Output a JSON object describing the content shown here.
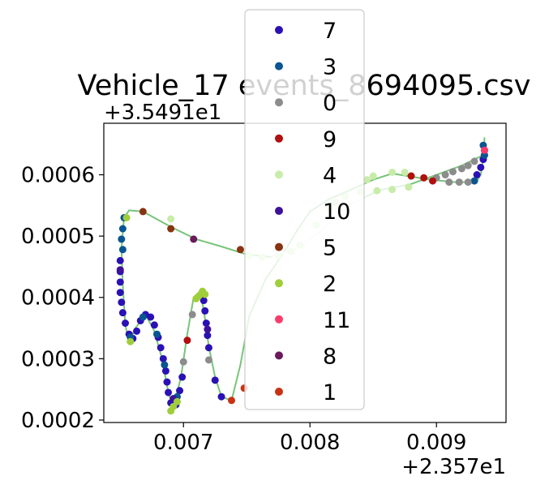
{
  "chart_data": {
    "type": "scatter",
    "title": "Vehicle_17 events_8694095.csv",
    "xlabel": "",
    "ylabel": "",
    "x_offset_label": "+2.357e1",
    "y_offset_label": "+3.5491e1",
    "x_offset": 23.57,
    "y_offset": 35.491,
    "xlim": [
      0.00637,
      0.00955
    ],
    "ylim": [
      0.000196,
      0.000684
    ],
    "x_ticks": [
      0.007,
      0.008,
      0.009
    ],
    "x_tick_labels": [
      "0.007",
      "0.008",
      "0.009"
    ],
    "y_ticks": [
      0.0002,
      0.0003,
      0.0004,
      0.0005,
      0.0006
    ],
    "y_tick_labels": [
      "0.0002",
      "0.0003",
      "0.0004",
      "0.0005",
      "0.0006"
    ],
    "grid": false,
    "legend_position": "upper center",
    "trajectory_line": {
      "colors": [
        "#72c173",
        "#f0f9f0"
      ]
    },
    "trajectory": [
      [
        0.00938,
        0.00066
      ],
      [
        0.00937,
        0.000625
      ],
      [
        0.00935,
        0.0006
      ],
      [
        0.00932,
        0.00059
      ],
      [
        0.00926,
        0.000588
      ],
      [
        0.00915,
        0.000588
      ],
      [
        0.00905,
        0.00059
      ],
      [
        0.00895,
        0.000592
      ],
      [
        0.0088,
        0.000597
      ],
      [
        0.00865,
        0.000602
      ],
      [
        0.0085,
        0.000592
      ],
      [
        0.00835,
        0.000578
      ],
      [
        0.00815,
        0.00056
      ],
      [
        0.008,
        0.00054
      ],
      [
        0.0079,
        0.00051
      ],
      [
        0.0078,
        0.000475
      ],
      [
        0.00765,
        0.00043
      ],
      [
        0.00752,
        0.00037
      ],
      [
        0.00745,
        0.00029
      ],
      [
        0.00738,
        0.000232
      ],
      [
        0.0073,
        0.000238
      ],
      [
        0.00725,
        0.00027
      ],
      [
        0.0072,
        0.00032
      ],
      [
        0.00716,
        0.00038
      ],
      [
        0.00713,
        0.00041
      ],
      [
        0.00708,
        0.0004
      ],
      [
        0.00703,
        0.00034
      ],
      [
        0.00698,
        0.00027
      ],
      [
        0.00692,
        0.00022
      ],
      [
        0.00688,
        0.000245
      ],
      [
        0.00683,
        0.0003
      ],
      [
        0.00677,
        0.000345
      ],
      [
        0.0067,
        0.000372
      ],
      [
        0.00662,
        0.00035
      ],
      [
        0.00657,
        0.000326
      ],
      [
        0.00654,
        0.000355
      ],
      [
        0.00652,
        0.00042
      ],
      [
        0.00651,
        0.00048
      ],
      [
        0.00653,
        0.00053
      ],
      [
        0.00657,
        0.000542
      ],
      [
        0.00668,
        0.00054
      ],
      [
        0.0069,
        0.000515
      ],
      [
        0.0071,
        0.000495
      ],
      [
        0.0073,
        0.000483
      ],
      [
        0.0075,
        0.00047
      ],
      [
        0.0077,
        0.000466
      ],
      [
        0.0079,
        0.00048
      ],
      [
        0.0081,
        0.00051
      ],
      [
        0.0083,
        0.00055
      ],
      [
        0.00855,
        0.000575
      ],
      [
        0.0088,
        0.000585
      ],
      [
        0.009,
        0.0006
      ],
      [
        0.0092,
        0.000615
      ],
      [
        0.00935,
        0.00063
      ],
      [
        0.00938,
        0.000645
      ]
    ],
    "series": [
      {
        "name": "7",
        "color": "#2a11b5",
        "points": [
          [
            0.00932,
            0.0006
          ],
          [
            0.00935,
            0.000612
          ],
          [
            0.00937,
            0.000625
          ],
          [
            0.00938,
            0.00064
          ],
          [
            0.0065,
            0.00046
          ],
          [
            0.0065,
            0.000442
          ],
          [
            0.0065,
            0.000425
          ],
          [
            0.0065,
            0.000408
          ],
          [
            0.00651,
            0.000392
          ],
          [
            0.00652,
            0.000375
          ],
          [
            0.00654,
            0.000358
          ],
          [
            0.00657,
            0.00034
          ],
          [
            0.0066,
            0.000333
          ],
          [
            0.00663,
            0.000345
          ],
          [
            0.00666,
            0.000362
          ],
          [
            0.0067,
            0.000372
          ],
          [
            0.00674,
            0.000368
          ],
          [
            0.00677,
            0.000355
          ],
          [
            0.0068,
            0.000335
          ],
          [
            0.00682,
            0.000318
          ],
          [
            0.00684,
            0.0003
          ],
          [
            0.00686,
            0.00028
          ],
          [
            0.00687,
            0.000262
          ],
          [
            0.00688,
            0.000245
          ],
          [
            0.0069,
            0.000228
          ],
          [
            0.00694,
            0.000225
          ],
          [
            0.00697,
            0.000248
          ],
          [
            0.00699,
            0.00027
          ],
          [
            0.00716,
            0.000395
          ],
          [
            0.00717,
            0.000378
          ],
          [
            0.00718,
            0.000358
          ],
          [
            0.00719,
            0.000338
          ],
          [
            0.0072,
            0.000318
          ],
          [
            0.00725,
            0.000265
          ],
          [
            0.0073,
            0.000238
          ]
        ]
      },
      {
        "name": "3",
        "color": "#0a5591",
        "points": [
          [
            0.00937,
            0.000648
          ],
          [
            0.00938,
            0.000632
          ],
          [
            0.00651,
            0.000495
          ],
          [
            0.00652,
            0.000512
          ],
          [
            0.00653,
            0.00053
          ],
          [
            0.00658,
            0.000335
          ],
          [
            0.00668,
            0.000368
          ],
          [
            0.00679,
            0.00034
          ],
          [
            0.00685,
            0.00029
          ],
          [
            0.00695,
            0.000238
          ],
          [
            0.0093,
            0.00059
          ],
          [
            0.00652,
            0.000478
          ]
        ]
      },
      {
        "name": "0",
        "color": "#8c8c8c",
        "points": [
          [
            0.009,
            0.000595
          ],
          [
            0.00907,
            0.0006
          ],
          [
            0.00913,
            0.000605
          ],
          [
            0.0092,
            0.00061
          ],
          [
            0.00925,
            0.000615
          ],
          [
            0.0093,
            0.000622
          ],
          [
            0.0091,
            0.000588
          ],
          [
            0.00918,
            0.000588
          ],
          [
            0.00925,
            0.000588
          ],
          [
            0.007,
            0.000295
          ],
          [
            0.00707,
            0.000372
          ],
          [
            0.0072,
            0.000298
          ]
        ]
      },
      {
        "name": "9",
        "color": "#b01010",
        "points": [
          [
            0.0088,
            0.000598
          ],
          [
            0.0089,
            0.000595
          ],
          [
            0.00897,
            0.00059
          ],
          [
            0.00703,
            0.00033
          ]
        ]
      },
      {
        "name": "4",
        "color": "#c8ecaa",
        "points": [
          [
            0.0084,
            0.000572
          ],
          [
            0.00853,
            0.000574
          ],
          [
            0.00865,
            0.000576
          ],
          [
            0.00878,
            0.00058
          ],
          [
            0.00865,
            0.000604
          ],
          [
            0.00875,
            0.000604
          ],
          [
            0.00845,
            0.000592
          ],
          [
            0.0069,
            0.000528
          ],
          [
            0.00752,
            0.000468
          ],
          [
            0.00762,
            0.000466
          ],
          [
            0.00775,
            0.000468
          ],
          [
            0.00785,
            0.000475
          ],
          [
            0.00792,
            0.000485
          ],
          [
            0.00805,
            0.000518
          ],
          [
            0.00815,
            0.000545
          ],
          [
            0.00828,
            0.000565
          ],
          [
            0.0085,
            0.000598
          ],
          [
            0.0082,
            0.000555
          ]
        ]
      },
      {
        "name": "10",
        "color": "#3e1298",
        "points": [
          [
            0.0065,
            0.000445
          ],
          [
            0.00692,
            0.000235
          ],
          [
            0.00719,
            0.000348
          ]
        ]
      },
      {
        "name": "5",
        "color": "#883311",
        "points": [
          [
            0.00668,
            0.00054
          ],
          [
            0.0069,
            0.000512
          ],
          [
            0.00745,
            0.000478
          ]
        ]
      },
      {
        "name": "2",
        "color": "#a0ce3a",
        "points": [
          [
            0.00655,
            0.00053
          ],
          [
            0.00658,
            0.000328
          ],
          [
            0.00712,
            0.000402
          ],
          [
            0.00715,
            0.00041
          ],
          [
            0.00717,
            0.000405
          ],
          [
            0.0071,
            0.000398
          ],
          [
            0.0069,
            0.000215
          ],
          [
            0.00692,
            0.000222
          ],
          [
            0.00695,
            0.00023
          ]
        ]
      },
      {
        "name": "11",
        "color": "#ff3b6b",
        "points": [
          [
            0.00938,
            0.00064
          ]
        ]
      },
      {
        "name": "8",
        "color": "#6a1a5a",
        "points": [
          [
            0.00708,
            0.000495
          ]
        ]
      },
      {
        "name": "1",
        "color": "#c83212",
        "points": [
          [
            0.00738,
            0.000232
          ],
          [
            0.00748,
            0.000252
          ]
        ]
      }
    ]
  }
}
